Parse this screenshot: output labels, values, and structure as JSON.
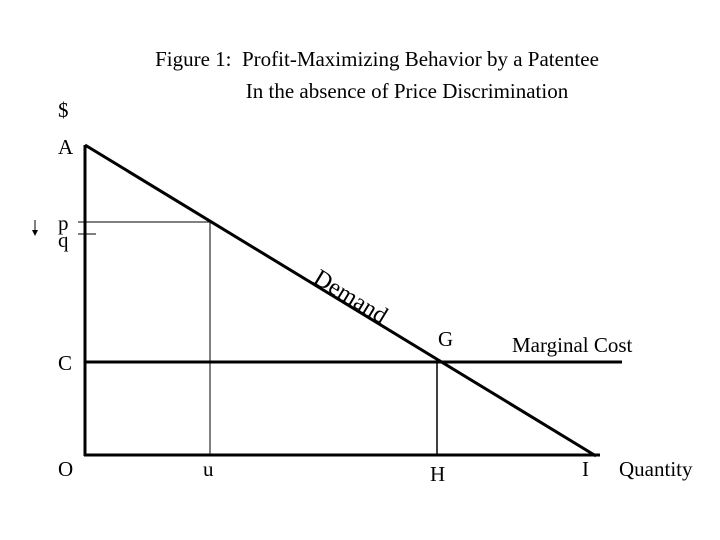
{
  "title": {
    "line1": "Figure 1:  Profit-Maximizing Behavior by a Patentee",
    "line2": "In the absence of Price Discrimination"
  },
  "labels": {
    "dollar": "$",
    "A": "A",
    "p": "p",
    "q": "q",
    "demand": "Demand",
    "G": "G",
    "marginal_cost": "Marginal Cost",
    "C": "C",
    "O": "O",
    "u": "u",
    "H": "H",
    "I": "I",
    "quantity": "Quantity"
  }
}
